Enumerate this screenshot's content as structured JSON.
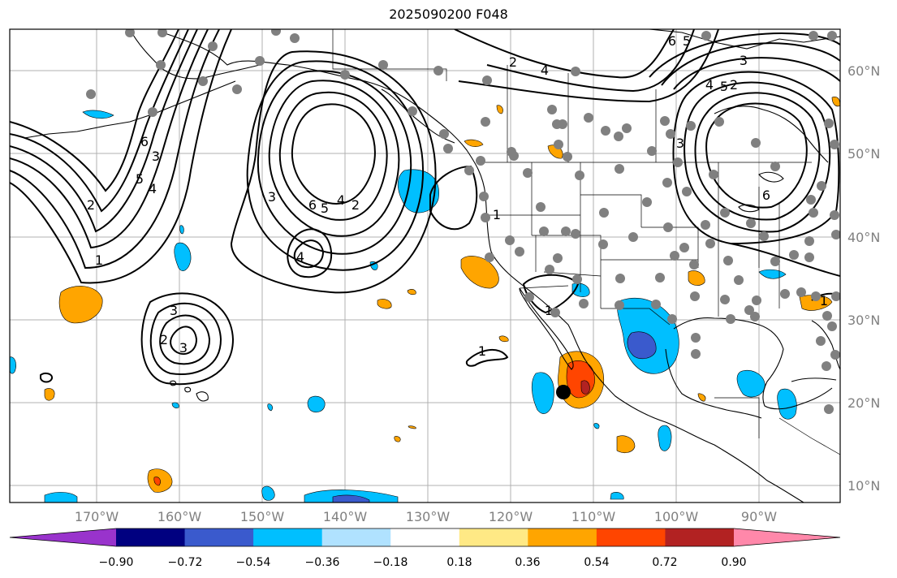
{
  "title": "2025090200 F048",
  "map": {
    "lon_labels": [
      "170°W",
      "160°W",
      "150°W",
      "140°W",
      "130°W",
      "120°W",
      "110°W",
      "100°W",
      "90°W"
    ],
    "lat_labels": [
      "60°N",
      "50°N",
      "40°N",
      "30°N",
      "20°N",
      "10°N"
    ],
    "contour_labels": [
      "6",
      "5",
      "4",
      "3",
      "2",
      "1",
      "3",
      "6",
      "5",
      "4",
      "2",
      "4",
      "3",
      "2",
      "3",
      "1",
      "1",
      "1",
      "6",
      "5",
      "4",
      "3",
      "2",
      "6",
      "5",
      "4",
      "3",
      "2",
      "1"
    ],
    "storm_marker": "black-dot",
    "colors": {
      "land_line": "#000000",
      "grid": "#b0b0b0",
      "station_dot": "#808080"
    }
  },
  "colorbar": {
    "ticks": [
      "−0.90",
      "−0.72",
      "−0.54",
      "−0.36",
      "−0.18",
      "0.18",
      "0.36",
      "0.54",
      "0.72",
      "0.90"
    ],
    "colors": [
      "#9933cc",
      "#000080",
      "#3a5acd",
      "#00bfff",
      "#b0e2ff",
      "#ffffff",
      "#ffe985",
      "#ffa500",
      "#ff4500",
      "#b22222",
      "#ff88aa"
    ]
  }
}
